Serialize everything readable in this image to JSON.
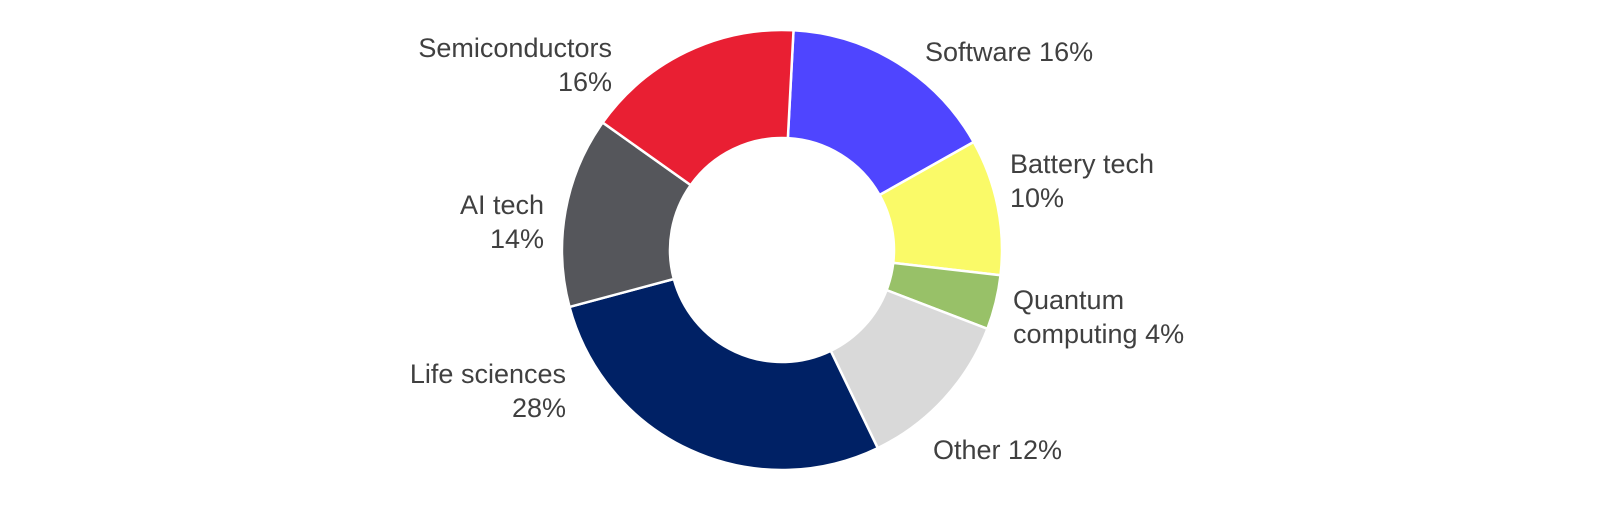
{
  "chart_data": {
    "type": "pie",
    "style": "donut",
    "title": "",
    "legend": "none",
    "slices": [
      {
        "label": "Software",
        "value": 16,
        "display": "16%",
        "color": "#4f45ff"
      },
      {
        "label": "Battery tech",
        "value": 10,
        "display": "10%",
        "color": "#fafa68"
      },
      {
        "label": "Quantum computing",
        "value": 4,
        "display": "4%",
        "color": "#98c168"
      },
      {
        "label": "Other",
        "value": 12,
        "display": "12%",
        "color": "#d9d9d9"
      },
      {
        "label": "Life sciences",
        "value": 28,
        "display": "28%",
        "color": "#002165"
      },
      {
        "label": "AI tech",
        "value": 14,
        "display": "14%",
        "color": "#55565b"
      },
      {
        "label": "Semiconductors",
        "value": 16,
        "display": "16%",
        "color": "#e91f33"
      }
    ]
  }
}
